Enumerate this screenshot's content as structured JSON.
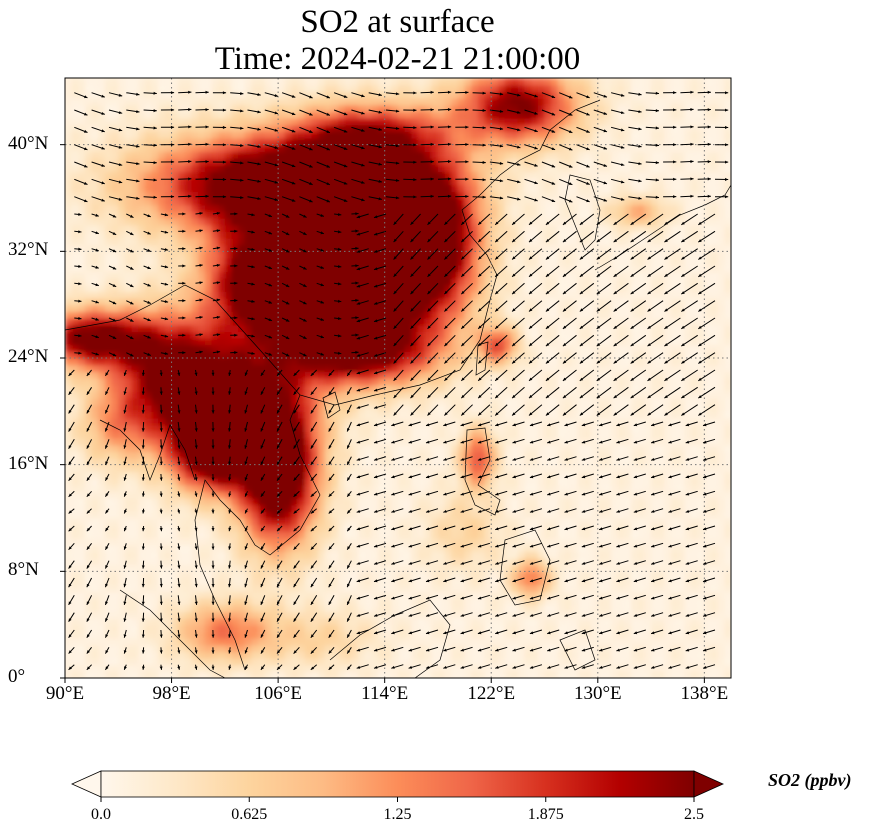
{
  "title": {
    "line1": "SO2 at surface",
    "line2": "Time: 2024-02-21 21:00:00"
  },
  "map": {
    "extent": {
      "lon": [
        90,
        140
      ],
      "lat": [
        0,
        45
      ]
    },
    "lat_ticks": [
      {
        "value": 0,
        "label": "0°"
      },
      {
        "value": 8,
        "label": "8°N"
      },
      {
        "value": 16,
        "label": "16°N"
      },
      {
        "value": 24,
        "label": "24°N"
      },
      {
        "value": 32,
        "label": "32°N"
      },
      {
        "value": 40,
        "label": "40°N"
      }
    ],
    "lon_ticks": [
      {
        "value": 90,
        "label": "90°E"
      },
      {
        "value": 98,
        "label": "98°E"
      },
      {
        "value": 106,
        "label": "106°E"
      },
      {
        "value": 114,
        "label": "114°E"
      },
      {
        "value": 122,
        "label": "122°E"
      },
      {
        "value": 130,
        "label": "130°E"
      },
      {
        "value": 138,
        "label": "138°E"
      }
    ],
    "gridlines": true,
    "gridline_style": "dotted",
    "field": {
      "variable": "SO2",
      "background_color": "#fff3e3",
      "high_regions": [
        {
          "lon": 106,
          "lat": 37,
          "sx": 6.5,
          "sy": 2.5,
          "value": 3.2
        },
        {
          "lon": 112,
          "lat": 34,
          "sx": 3.5,
          "sy": 4.0,
          "value": 2.8
        },
        {
          "lon": 117.5,
          "lat": 33,
          "sx": 2.5,
          "sy": 4.0,
          "value": 2.8
        },
        {
          "lon": 110,
          "lat": 28.5,
          "sx": 4.5,
          "sy": 3.0,
          "value": 2.2
        },
        {
          "lon": 104,
          "lat": 30,
          "sx": 2.5,
          "sy": 3.0,
          "value": 2.0
        },
        {
          "lon": 112,
          "lat": 24.5,
          "sx": 4.0,
          "sy": 1.8,
          "value": 2.2
        },
        {
          "lon": 92,
          "lat": 25.5,
          "sx": 3.0,
          "sy": 1.5,
          "value": 2.5
        },
        {
          "lon": 98,
          "lat": 23,
          "sx": 3.0,
          "sy": 3.0,
          "value": 2.2
        },
        {
          "lon": 103,
          "lat": 20,
          "sx": 3.5,
          "sy": 3.0,
          "value": 2.8
        },
        {
          "lon": 106,
          "lat": 15,
          "sx": 2.0,
          "sy": 3.5,
          "value": 3.0
        },
        {
          "lon": 101,
          "lat": 17,
          "sx": 2.0,
          "sy": 2.0,
          "value": 2.3
        },
        {
          "lon": 124,
          "lat": 43,
          "sx": 3.0,
          "sy": 2.0,
          "value": 2.4
        },
        {
          "lon": 121,
          "lat": 16.5,
          "sx": 0.9,
          "sy": 1.5,
          "value": 1.6
        },
        {
          "lon": 122.5,
          "lat": 25,
          "sx": 1.0,
          "sy": 1.0,
          "value": 1.5
        },
        {
          "lon": 102,
          "lat": 3.5,
          "sx": 2.5,
          "sy": 1.5,
          "value": 1.3
        },
        {
          "lon": 125,
          "lat": 7.5,
          "sx": 1.0,
          "sy": 1.0,
          "value": 1.3
        },
        {
          "lon": 113,
          "lat": 41,
          "sx": 4.0,
          "sy": 1.5,
          "value": 1.4
        },
        {
          "lon": 133,
          "lat": 35,
          "sx": 1.5,
          "sy": 0.8,
          "value": 0.9
        },
        {
          "lon": 94,
          "lat": 19,
          "sx": 2.0,
          "sy": 2.0,
          "value": 0.9
        },
        {
          "lon": 109,
          "lat": 3,
          "sx": 3.0,
          "sy": 1.5,
          "value": 0.5
        },
        {
          "lon": 120,
          "lat": 11,
          "sx": 2.0,
          "sy": 2.0,
          "value": 0.5
        }
      ]
    },
    "wind_vectors": {
      "color": "#000000",
      "pattern": "northeasterly monsoon with westerlies in the north"
    }
  },
  "colorbar": {
    "label": "SO2 (ppbv)",
    "min": 0.0,
    "max": 2.5,
    "extend": "both",
    "colormap": [
      "#fff7ec",
      "#fee8c8",
      "#fdd49e",
      "#fdbb84",
      "#fc8d59",
      "#ef6548",
      "#d7301f",
      "#b30000",
      "#7f0000"
    ],
    "ticks": [
      "0.0",
      "0.625",
      "1.25",
      "1.875",
      "2.5"
    ]
  }
}
